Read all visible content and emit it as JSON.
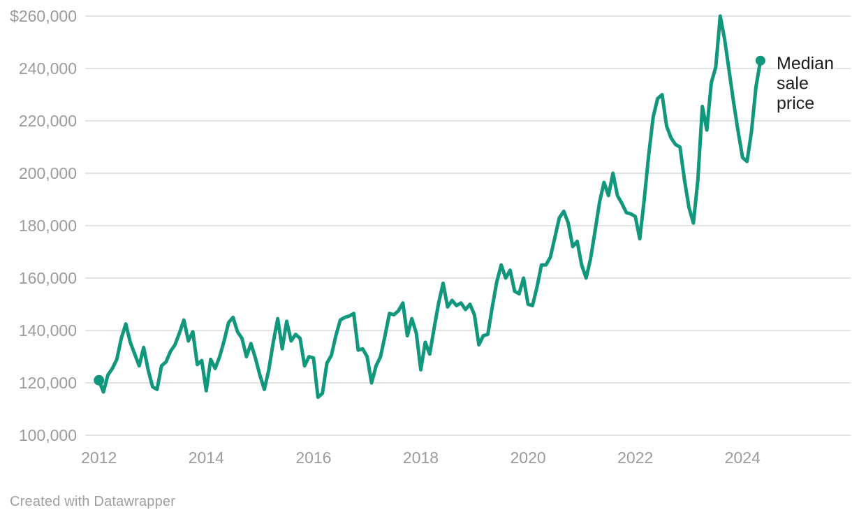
{
  "chart_data": {
    "type": "line",
    "x_start": "2012-01",
    "x_freq": "monthly",
    "x_end": "2024-05",
    "series": [
      {
        "name": "Median sale price",
        "label_lines": [
          "Median",
          "sale",
          "price"
        ],
        "values": [
          121000,
          116500,
          123000,
          125500,
          129000,
          137000,
          142500,
          135500,
          131000,
          126500,
          133500,
          125000,
          118500,
          117500,
          126500,
          128000,
          132000,
          134500,
          139000,
          144000,
          136000,
          139500,
          127000,
          128500,
          117000,
          129000,
          125500,
          130000,
          136000,
          143000,
          145000,
          139500,
          137000,
          130000,
          135000,
          129500,
          123000,
          117500,
          125000,
          135500,
          144500,
          133000,
          143500,
          136000,
          138500,
          137000,
          126500,
          130000,
          129500,
          114500,
          116000,
          127500,
          130500,
          138000,
          144000,
          145000,
          145500,
          146500,
          132500,
          133000,
          130000,
          120000,
          126500,
          130000,
          138000,
          146500,
          146000,
          147500,
          150500,
          138000,
          144500,
          139000,
          125000,
          135500,
          131000,
          141000,
          150500,
          158000,
          149000,
          151500,
          149500,
          150500,
          148000,
          150000,
          146000,
          134500,
          138000,
          138500,
          149000,
          158500,
          165000,
          160000,
          163000,
          155000,
          154000,
          160000,
          150000,
          149500,
          156500,
          165000,
          165000,
          168000,
          175500,
          183000,
          185500,
          181000,
          172000,
          174000,
          165000,
          160000,
          167500,
          178000,
          189000,
          196500,
          191500,
          200000,
          191500,
          188500,
          185000,
          184500,
          183500,
          175000,
          190000,
          207000,
          221500,
          228500,
          230000,
          218000,
          213500,
          211000,
          210000,
          197500,
          187000,
          181000,
          197500,
          225500,
          216500,
          234500,
          240500,
          260000,
          251000,
          239000,
          227000,
          216000,
          206000,
          204500,
          216000,
          233000,
          243000
        ]
      }
    ],
    "y_ticks": [
      {
        "label": "$260,000",
        "value": 260000
      },
      {
        "label": "240,000",
        "value": 240000
      },
      {
        "label": "220,000",
        "value": 220000
      },
      {
        "label": "200,000",
        "value": 200000
      },
      {
        "label": "180,000",
        "value": 180000
      },
      {
        "label": "160,000",
        "value": 160000
      },
      {
        "label": "140,000",
        "value": 140000
      },
      {
        "label": "120,000",
        "value": 120000
      },
      {
        "label": "100,000",
        "value": 100000
      }
    ],
    "x_ticks": [
      {
        "label": "2012",
        "year": 2012
      },
      {
        "label": "2014",
        "year": 2014
      },
      {
        "label": "2016",
        "year": 2016
      },
      {
        "label": "2018",
        "year": 2018
      },
      {
        "label": "2020",
        "year": 2020
      },
      {
        "label": "2022",
        "year": 2022
      },
      {
        "label": "2024",
        "year": 2024
      }
    ],
    "ylim": [
      100000,
      260000
    ],
    "grid": "horizontal",
    "legend_position": "direct-label-at-line-end",
    "endpoint_markers": true
  },
  "colors": {
    "line": "#10977c",
    "grid": "#e3e3e3",
    "axis_text": "#9b9b9b",
    "label_text": "#1c1c1c",
    "background": "#ffffff"
  },
  "footer": {
    "credit": "Created with Datawrapper"
  }
}
